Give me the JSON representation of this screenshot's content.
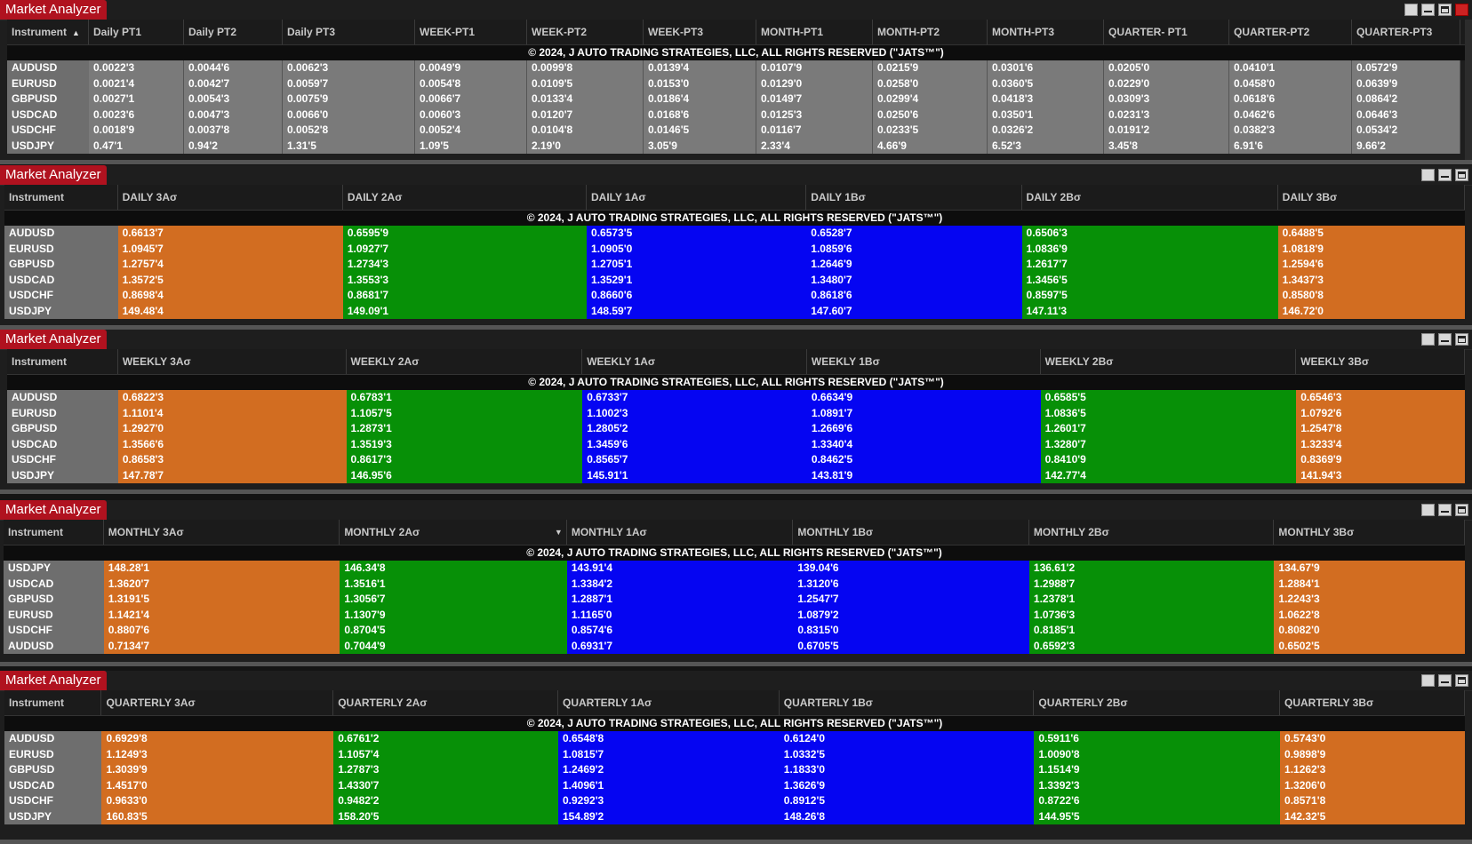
{
  "copyright": "© 2024, J AUTO TRADING STRATEGIES, LLC, ALL RIGHTS RESERVED (\"JATS™\")",
  "instrument_label": "Instrument",
  "panels": [
    {
      "title": "Market Analyzer",
      "columns": [
        "Daily PT1",
        "Daily PT2",
        "Daily PT3",
        "WEEK-PT1",
        "WEEK-PT2",
        "WEEK-PT3",
        "MONTH-PT1",
        "MONTH-PT2",
        "MONTH-PT3",
        "QUARTER- PT1",
        "QUARTER-PT2",
        "QUARTER-PT3"
      ],
      "rows": [
        {
          "instrument": "AUDUSD",
          "values": [
            "0.0022'3",
            "0.0044'6",
            "0.0062'3",
            "0.0049'9",
            "0.0099'8",
            "0.0139'4",
            "0.0107'9",
            "0.0215'9",
            "0.0301'6",
            "0.0205'0",
            "0.0410'1",
            "0.0572'9"
          ]
        },
        {
          "instrument": "EURUSD",
          "values": [
            "0.0021'4",
            "0.0042'7",
            "0.0059'7",
            "0.0054'8",
            "0.0109'5",
            "0.0153'0",
            "0.0129'0",
            "0.0258'0",
            "0.0360'5",
            "0.0229'0",
            "0.0458'0",
            "0.0639'9"
          ]
        },
        {
          "instrument": "GBPUSD",
          "values": [
            "0.0027'1",
            "0.0054'3",
            "0.0075'9",
            "0.0066'7",
            "0.0133'4",
            "0.0186'4",
            "0.0149'7",
            "0.0299'4",
            "0.0418'3",
            "0.0309'3",
            "0.0618'6",
            "0.0864'2"
          ]
        },
        {
          "instrument": "USDCAD",
          "values": [
            "0.0023'6",
            "0.0047'3",
            "0.0066'0",
            "0.0060'3",
            "0.0120'7",
            "0.0168'6",
            "0.0125'3",
            "0.0250'6",
            "0.0350'1",
            "0.0231'3",
            "0.0462'6",
            "0.0646'3"
          ]
        },
        {
          "instrument": "USDCHF",
          "values": [
            "0.0018'9",
            "0.0037'8",
            "0.0052'8",
            "0.0052'4",
            "0.0104'8",
            "0.0146'5",
            "0.0116'7",
            "0.0233'5",
            "0.0326'2",
            "0.0191'2",
            "0.0382'3",
            "0.0534'2"
          ]
        },
        {
          "instrument": "USDJPY",
          "values": [
            "0.47'1",
            "0.94'2",
            "1.31'5",
            "1.09'5",
            "2.19'0",
            "3.05'9",
            "2.33'4",
            "4.66'9",
            "6.52'3",
            "3.45'8",
            "6.91'6",
            "9.66'2"
          ]
        }
      ]
    },
    {
      "title": "Market Analyzer",
      "columns": [
        "DAILY 3Aσ",
        "DAILY 2Aσ",
        "DAILY 1Aσ",
        "DAILY 1Bσ",
        "DAILY 2Bσ",
        "DAILY 3Bσ"
      ],
      "rows": [
        {
          "instrument": "AUDUSD",
          "values": [
            "0.6613'7",
            "0.6595'9",
            "0.6573'5",
            "0.6528'7",
            "0.6506'3",
            "0.6488'5"
          ]
        },
        {
          "instrument": "EURUSD",
          "values": [
            "1.0945'7",
            "1.0927'7",
            "1.0905'0",
            "1.0859'6",
            "1.0836'9",
            "1.0818'9"
          ]
        },
        {
          "instrument": "GBPUSD",
          "values": [
            "1.2757'4",
            "1.2734'3",
            "1.2705'1",
            "1.2646'9",
            "1.2617'7",
            "1.2594'6"
          ]
        },
        {
          "instrument": "USDCAD",
          "values": [
            "1.3572'5",
            "1.3553'3",
            "1.3529'1",
            "1.3480'7",
            "1.3456'5",
            "1.3437'3"
          ]
        },
        {
          "instrument": "USDCHF",
          "values": [
            "0.8698'4",
            "0.8681'7",
            "0.8660'6",
            "0.8618'6",
            "0.8597'5",
            "0.8580'8"
          ]
        },
        {
          "instrument": "USDJPY",
          "values": [
            "149.48'4",
            "149.09'1",
            "148.59'7",
            "147.60'7",
            "147.11'3",
            "146.72'0"
          ]
        }
      ]
    },
    {
      "title": "Market Analyzer",
      "columns": [
        "WEEKLY 3Aσ",
        "WEEKLY 2Aσ",
        "WEEKLY 1Aσ",
        "WEEKLY 1Bσ",
        "WEEKLY 2Bσ",
        "WEEKLY 3Bσ"
      ],
      "rows": [
        {
          "instrument": "AUDUSD",
          "values": [
            "0.6822'3",
            "0.6783'1",
            "0.6733'7",
            "0.6634'9",
            "0.6585'5",
            "0.6546'3"
          ]
        },
        {
          "instrument": "EURUSD",
          "values": [
            "1.1101'4",
            "1.1057'5",
            "1.1002'3",
            "1.0891'7",
            "1.0836'5",
            "1.0792'6"
          ]
        },
        {
          "instrument": "GBPUSD",
          "values": [
            "1.2927'0",
            "1.2873'1",
            "1.2805'2",
            "1.2669'6",
            "1.2601'7",
            "1.2547'8"
          ]
        },
        {
          "instrument": "USDCAD",
          "values": [
            "1.3566'6",
            "1.3519'3",
            "1.3459'6",
            "1.3340'4",
            "1.3280'7",
            "1.3233'4"
          ]
        },
        {
          "instrument": "USDCHF",
          "values": [
            "0.8658'3",
            "0.8617'3",
            "0.8565'7",
            "0.8462'5",
            "0.8410'9",
            "0.8369'9"
          ]
        },
        {
          "instrument": "USDJPY",
          "values": [
            "147.78'7",
            "146.95'6",
            "145.91'1",
            "143.81'9",
            "142.77'4",
            "141.94'3"
          ]
        }
      ]
    },
    {
      "title": "Market Analyzer",
      "columns": [
        "MONTHLY 3Aσ",
        "MONTHLY 2Aσ",
        "MONTHLY 1Aσ",
        "MONTHLY 1Bσ",
        "MONTHLY 2Bσ",
        "MONTHLY 3Bσ"
      ],
      "rows": [
        {
          "instrument": "USDJPY",
          "values": [
            "148.28'1",
            "146.34'8",
            "143.91'4",
            "139.04'6",
            "136.61'2",
            "134.67'9"
          ]
        },
        {
          "instrument": "USDCAD",
          "values": [
            "1.3620'7",
            "1.3516'1",
            "1.3384'2",
            "1.3120'6",
            "1.2988'7",
            "1.2884'1"
          ]
        },
        {
          "instrument": "GBPUSD",
          "values": [
            "1.3191'5",
            "1.3056'7",
            "1.2887'1",
            "1.2547'7",
            "1.2378'1",
            "1.2243'3"
          ]
        },
        {
          "instrument": "EURUSD",
          "values": [
            "1.1421'4",
            "1.1307'9",
            "1.1165'0",
            "1.0879'2",
            "1.0736'3",
            "1.0622'8"
          ]
        },
        {
          "instrument": "USDCHF",
          "values": [
            "0.8807'6",
            "0.8704'5",
            "0.8574'6",
            "0.8315'0",
            "0.8185'1",
            "0.8082'0"
          ]
        },
        {
          "instrument": "AUDUSD",
          "values": [
            "0.7134'7",
            "0.7044'9",
            "0.6931'7",
            "0.6705'5",
            "0.6592'3",
            "0.6502'5"
          ]
        }
      ]
    },
    {
      "title": "Market Analyzer",
      "columns": [
        "QUARTERLY 3Aσ",
        "QUARTERLY 2Aσ",
        "QUARTERLY 1Aσ",
        "QUARTERLY 1Bσ",
        "QUARTERLY 2Bσ",
        "QUARTERLY 3Bσ"
      ],
      "rows": [
        {
          "instrument": "AUDUSD",
          "values": [
            "0.6929'8",
            "0.6761'2",
            "0.6548'8",
            "0.6124'0",
            "0.5911'6",
            "0.5743'0"
          ]
        },
        {
          "instrument": "EURUSD",
          "values": [
            "1.1249'3",
            "1.1057'4",
            "1.0815'7",
            "1.0332'5",
            "1.0090'8",
            "0.9898'9"
          ]
        },
        {
          "instrument": "GBPUSD",
          "values": [
            "1.3039'9",
            "1.2787'3",
            "1.2469'2",
            "1.1833'0",
            "1.1514'9",
            "1.1262'3"
          ]
        },
        {
          "instrument": "USDCAD",
          "values": [
            "1.4517'0",
            "1.4330'7",
            "1.4096'1",
            "1.3626'9",
            "1.3392'3",
            "1.3206'0"
          ]
        },
        {
          "instrument": "USDCHF",
          "values": [
            "0.9633'0",
            "0.9482'2",
            "0.9292'3",
            "0.8912'5",
            "0.8722'6",
            "0.8571'8"
          ]
        },
        {
          "instrument": "USDJPY",
          "values": [
            "160.83'5",
            "158.20'5",
            "154.89'2",
            "148.26'8",
            "144.95'5",
            "142.32'5"
          ]
        }
      ]
    }
  ],
  "band_colors": {
    "3A": "#d26d21",
    "2A": "#079007",
    "1A": "#0505f2",
    "1B": "#0505f2",
    "2B": "#079007",
    "3B": "#d26d21"
  }
}
